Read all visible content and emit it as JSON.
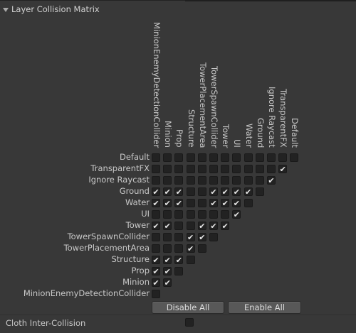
{
  "section": {
    "title": "Layer Collision Matrix"
  },
  "layers": [
    "Default",
    "TransparentFX",
    "Ignore Raycast",
    "Ground",
    "Water",
    "UI",
    "Tower",
    "TowerSpawnCollider",
    "TowerPlacementArea",
    "Structure",
    "Prop",
    "Minion",
    "MinionEnemyDetectionCollider"
  ],
  "matrix": [
    [
      0,
      0,
      0,
      0,
      0,
      0,
      0,
      0,
      0,
      0,
      0,
      0,
      0
    ],
    [
      0,
      0,
      0,
      0,
      0,
      0,
      0,
      0,
      0,
      0,
      0,
      1,
      1
    ],
    [
      0,
      0,
      0,
      0,
      0,
      0,
      0,
      0,
      0,
      0,
      1
    ],
    [
      1,
      1,
      1,
      0,
      0,
      1,
      1,
      1,
      1,
      0
    ],
    [
      1,
      1,
      1,
      0,
      0,
      1,
      1,
      1,
      0
    ],
    [
      0,
      0,
      0,
      0,
      0,
      0,
      0,
      1
    ],
    [
      1,
      1,
      0,
      0,
      1,
      1,
      1
    ],
    [
      0,
      0,
      0,
      1,
      1,
      0
    ],
    [
      0,
      0,
      0,
      1,
      0
    ],
    [
      1,
      1,
      1,
      0
    ],
    [
      1,
      1,
      0
    ],
    [
      1,
      1
    ],
    [
      0
    ]
  ],
  "buttons": {
    "disable_all": "Disable All",
    "enable_all": "Enable All"
  },
  "cloth": {
    "label": "Cloth Inter-Collision",
    "checked": false
  }
}
